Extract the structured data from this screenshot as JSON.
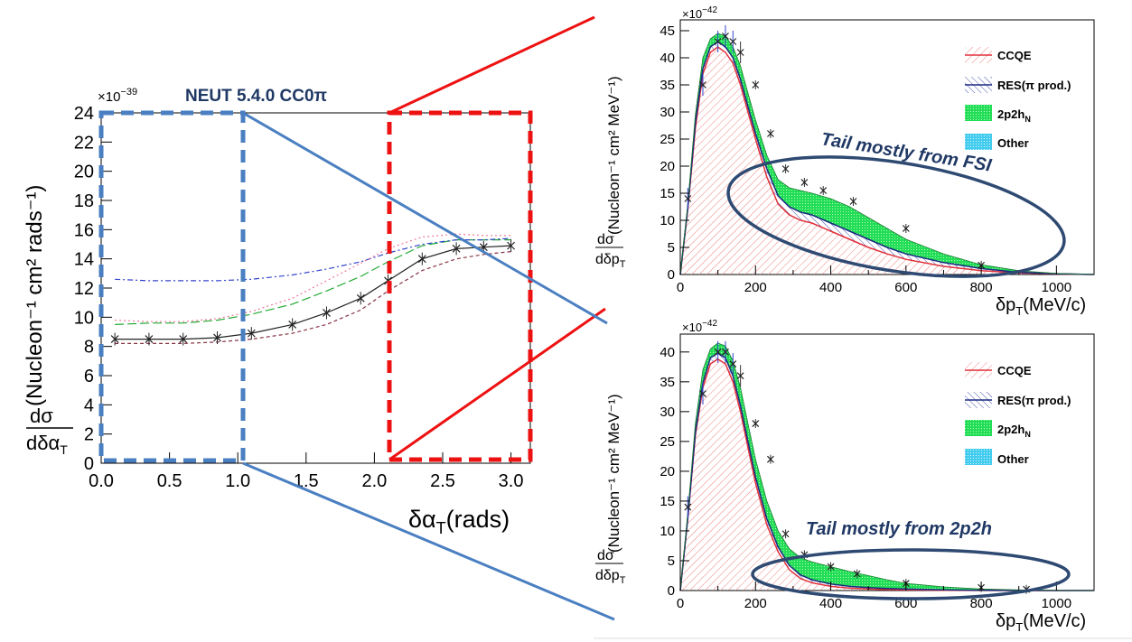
{
  "left_panel": {
    "title": "NEUT 5.4.0 CC0π",
    "exponent_base": "×10",
    "exponent_power": "−39",
    "ylabel_num": "dσ",
    "ylabel_den": "dδα",
    "ylabel_den_sub": "T",
    "ylabel_units": "(Nucleon⁻¹ cm² rads⁻¹)",
    "xlabel": "δα",
    "xlabel_sub": "T",
    "xlabel_units": "(rads)",
    "x_ticks": [
      "0.0",
      "0.5",
      "1.0",
      "1.5",
      "2.0",
      "2.5",
      "3.0"
    ],
    "y_ticks": [
      "0",
      "2",
      "4",
      "6",
      "8",
      "10",
      "12",
      "14",
      "16",
      "18",
      "20",
      "22",
      "24"
    ]
  },
  "top_panel": {
    "exponent_base": "×10",
    "exponent_power": "−42",
    "x_ticks": [
      "0",
      "200",
      "400",
      "600",
      "800",
      "1000"
    ],
    "y_ticks": [
      "0",
      "5",
      "10",
      "15",
      "20",
      "25",
      "30",
      "35",
      "40",
      "45"
    ],
    "ylabel_num": "dσ",
    "ylabel_den": "dδp",
    "ylabel_den_sub": "T",
    "ylabel_units": "(Nucleon⁻¹ cm² MeV⁻¹)",
    "xlabel": "δp",
    "xlabel_sub": "T",
    "xlabel_units": "(MeV/c)",
    "annotation": "Tail mostly from FSI",
    "legend": [
      "CCQE",
      "RES(π prod.)",
      "2p2h",
      "Other"
    ],
    "legend_2p2h_sub": "N"
  },
  "bottom_panel": {
    "exponent_base": "×10",
    "exponent_power": "−42",
    "x_ticks": [
      "0",
      "200",
      "400",
      "600",
      "800",
      "1000"
    ],
    "y_ticks": [
      "0",
      "5",
      "10",
      "15",
      "20",
      "25",
      "30",
      "35",
      "40"
    ],
    "ylabel_num": "dσ",
    "ylabel_den": "dδp",
    "ylabel_den_sub": "T",
    "ylabel_units": "(Nucleon⁻¹ cm² MeV⁻¹)",
    "xlabel": "δp",
    "xlabel_sub": "T",
    "xlabel_units": "(MeV/c)",
    "annotation": "Tail mostly from 2p2h",
    "legend": [
      "CCQE",
      "RES(π prod.)",
      "2p2h",
      "Other"
    ],
    "legend_2p2h_sub": "N"
  },
  "colors": {
    "ccqe": "#e0303a",
    "res": "#1a2a80",
    "np": "#22cc55",
    "other": "#33ccee",
    "blue_box": "#4a7fc1",
    "red_box": "#ee1111",
    "ellipse": "#2f4a72",
    "title": "#1f3864"
  },
  "chart_data": [
    {
      "type": "line",
      "xlim": [
        0,
        3.14159
      ],
      "ylim": [
        0,
        24
      ],
      "y_scale": "×10^-39",
      "x": [
        0.1,
        0.35,
        0.6,
        0.85,
        1.1,
        1.4,
        1.65,
        1.9,
        2.1,
        2.35,
        2.6,
        2.8,
        3.0
      ],
      "series": [
        {
          "name": "",
          "style": "black solid with markers",
          "values": [
            8.5,
            8.5,
            8.5,
            8.6,
            8.9,
            9.5,
            10.3,
            11.3,
            12.5,
            14.0,
            14.7,
            14.8,
            14.9
          ]
        },
        {
          "name": "",
          "style": "green long-dash",
          "values": [
            9.5,
            9.6,
            9.6,
            9.8,
            10.2,
            10.9,
            11.8,
            12.8,
            13.8,
            14.9,
            15.3,
            15.3,
            15.3
          ]
        },
        {
          "name": "",
          "style": "blue dash-dot",
          "values": [
            12.6,
            12.5,
            12.5,
            12.5,
            12.6,
            12.9,
            13.3,
            13.8,
            14.4,
            15.0,
            15.3,
            15.3,
            15.4
          ]
        },
        {
          "name": "",
          "style": "pink dotted",
          "values": [
            9.8,
            9.7,
            9.7,
            9.9,
            10.4,
            11.3,
            12.5,
            13.7,
            14.7,
            15.5,
            15.7,
            15.6,
            15.6
          ]
        },
        {
          "name": "",
          "style": "dark red dashed",
          "values": [
            8.2,
            8.2,
            8.2,
            8.3,
            8.5,
            8.9,
            9.5,
            10.5,
            11.8,
            13.2,
            14.0,
            14.3,
            14.5
          ]
        }
      ]
    },
    {
      "type": "area",
      "xlim": [
        0,
        1100
      ],
      "ylim": [
        0,
        47
      ],
      "y_scale": "×10^-42",
      "x": [
        0,
        20,
        40,
        60,
        80,
        100,
        120,
        140,
        160,
        180,
        200,
        230,
        260,
        290,
        320,
        350,
        400,
        450,
        500,
        550,
        600,
        700,
        800,
        900,
        1000,
        1100
      ],
      "series": [
        {
          "name": "CCQE",
          "values": [
            0,
            12,
            27,
            37,
            41,
            42,
            41,
            39,
            35,
            30,
            25,
            18,
            13,
            11,
            10,
            9.5,
            8,
            6.5,
            5,
            3.8,
            2.8,
            1.5,
            0.7,
            0.3,
            0.1,
            0
          ]
        },
        {
          "name": "RES(π prod.)",
          "values": [
            0,
            12.3,
            28,
            38,
            42,
            43,
            42,
            40,
            36,
            31,
            26,
            19.5,
            14.5,
            12.5,
            11.5,
            11,
            9.5,
            8,
            6.5,
            5,
            3.8,
            2.2,
            1.1,
            0.4,
            0.15,
            0
          ]
        },
        {
          "name": "2p2h",
          "values": [
            0,
            13,
            29.5,
            40,
            43.5,
            44.5,
            44,
            42,
            38.5,
            33.5,
            28.5,
            22,
            17.5,
            16,
            15.5,
            15,
            14,
            12.5,
            10.5,
            8.5,
            6.5,
            3.8,
            1.8,
            0.7,
            0.2,
            0
          ]
        }
      ],
      "points": {
        "x": [
          20,
          60,
          100,
          120,
          140,
          160,
          200,
          240,
          280,
          330,
          380,
          460,
          600,
          800
        ],
        "y": [
          14,
          35,
          43,
          44,
          43,
          41,
          35,
          26,
          19.5,
          17,
          15.5,
          13.5,
          8.5,
          1.7
        ]
      }
    },
    {
      "type": "area",
      "xlim": [
        0,
        1100
      ],
      "ylim": [
        0,
        43
      ],
      "y_scale": "×10^-42",
      "x": [
        0,
        20,
        40,
        60,
        80,
        100,
        120,
        140,
        160,
        180,
        200,
        230,
        260,
        290,
        320,
        350,
        400,
        450,
        500,
        550,
        600,
        700,
        800,
        900,
        1000,
        1100
      ],
      "series": [
        {
          "name": "CCQE",
          "values": [
            0,
            12,
            26,
            34,
            38,
            38.8,
            38,
            35,
            30,
            24,
            18,
            11,
            6.5,
            3.5,
            2,
            1.3,
            0.7,
            0.4,
            0.25,
            0.15,
            0.1,
            0.05,
            0.02,
            0,
            0,
            0
          ]
        },
        {
          "name": "RES(π prod.)",
          "values": [
            0,
            12.2,
            26.5,
            34.8,
            39,
            39.8,
            39,
            36,
            31,
            25,
            19,
            12,
            7.3,
            4.2,
            2.6,
            1.8,
            1.1,
            0.7,
            0.5,
            0.35,
            0.25,
            0.12,
            0.05,
            0.02,
            0,
            0
          ]
        },
        {
          "name": "2p2h",
          "values": [
            0,
            13,
            28,
            37,
            40.5,
            41.5,
            41,
            38.5,
            34,
            28,
            22,
            15,
            10,
            7,
            5.5,
            4.8,
            4,
            3.2,
            2.5,
            1.8,
            1.2,
            0.6,
            0.25,
            0.1,
            0.02,
            0
          ]
        }
      ],
      "points": {
        "x": [
          20,
          60,
          100,
          120,
          140,
          160,
          200,
          240,
          280,
          330,
          400,
          470,
          600,
          800,
          920
        ],
        "y": [
          14,
          33,
          40,
          40,
          38,
          36,
          28,
          22,
          9.5,
          6,
          4,
          2.8,
          1.2,
          0.5,
          0.2
        ]
      }
    }
  ]
}
